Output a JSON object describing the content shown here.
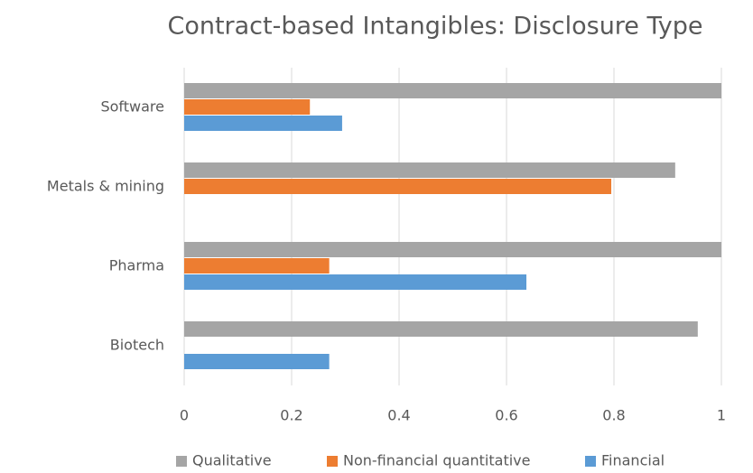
{
  "chart_data": {
    "type": "hbar",
    "title": "Contract-based Intangibles: Disclosure Type",
    "categories": [
      "Software",
      "Metals & mining",
      "Pharma",
      "Biotech"
    ],
    "series": [
      {
        "name": "Qualitative",
        "color": "#a5a5a5",
        "values": [
          1.0,
          0.914,
          1.0,
          0.956
        ]
      },
      {
        "name": "Non-financial quantitative",
        "color": "#ed7d31",
        "values": [
          0.234,
          0.795,
          0.27,
          0
        ]
      },
      {
        "name": "Financial",
        "color": "#5b9bd5",
        "values": [
          0.294,
          0,
          0.637,
          0.27
        ]
      }
    ],
    "xlim": [
      0,
      1
    ],
    "xticks": [
      0,
      0.2,
      0.4,
      0.6,
      0.8,
      1
    ],
    "grid": true,
    "legend": "bottom"
  }
}
